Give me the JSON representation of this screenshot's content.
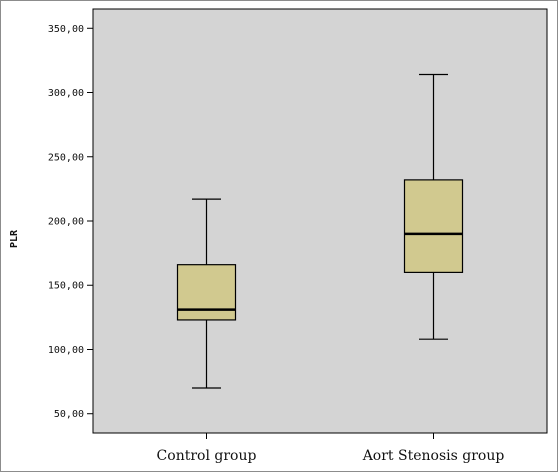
{
  "chart_data": {
    "type": "boxplot",
    "title": "",
    "xlabel": "",
    "ylabel": "PLR",
    "ylim": [
      35,
      365
    ],
    "yticks": [
      50,
      100,
      150,
      200,
      250,
      300,
      350
    ],
    "ytick_labels": [
      "50,00",
      "100,00",
      "150,00",
      "200,00",
      "250,00",
      "300,00",
      "350,00"
    ],
    "categories": [
      "Control group",
      "Aort Stenosis group"
    ],
    "boxes": [
      {
        "category": "Control group",
        "min": 70,
        "q1": 123,
        "median": 131,
        "q3": 166,
        "max": 217
      },
      {
        "category": "Aort Stenosis group",
        "min": 108,
        "q1": 160,
        "median": 190,
        "q3": 232,
        "max": 314
      }
    ],
    "grid": false,
    "colors": {
      "plot_background": "#d4d4d4",
      "box_fill": "#d1c98f",
      "box_stroke": "#000000"
    }
  }
}
